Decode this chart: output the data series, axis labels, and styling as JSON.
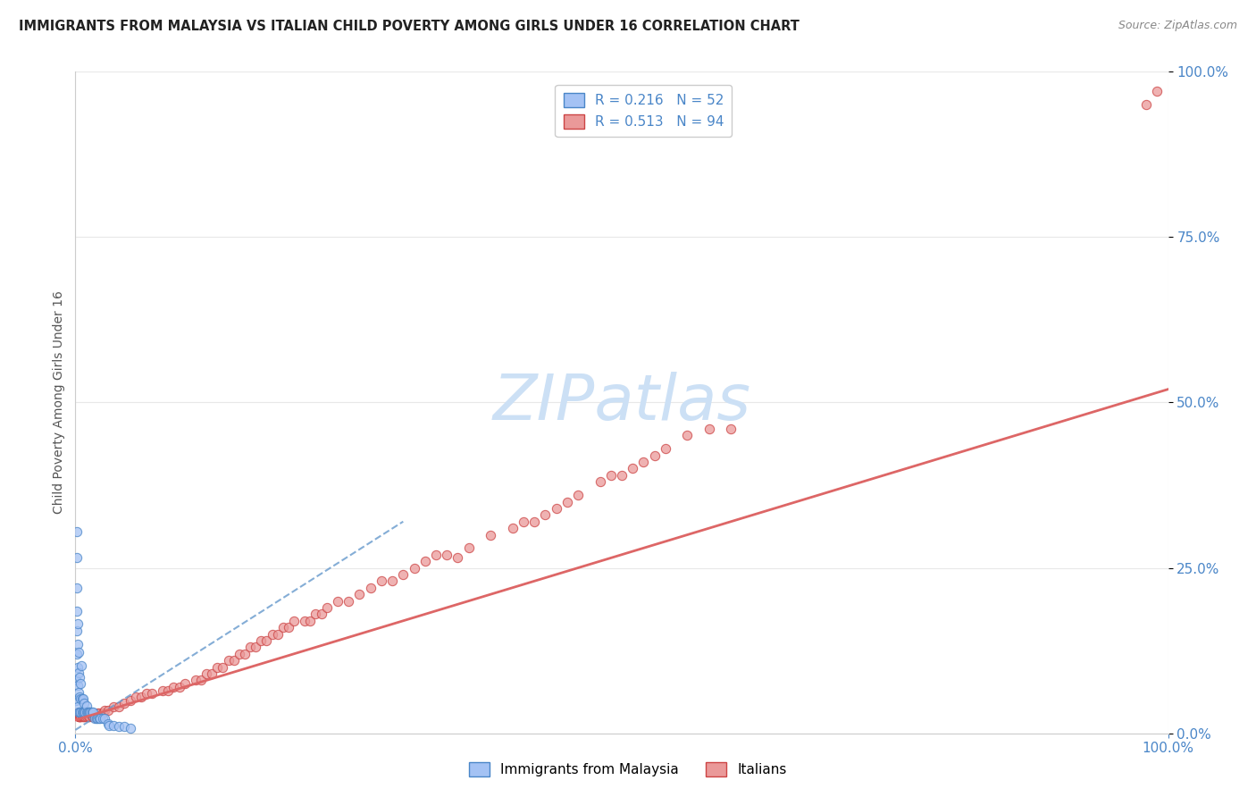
{
  "title": "IMMIGRANTS FROM MALAYSIA VS ITALIAN CHILD POVERTY AMONG GIRLS UNDER 16 CORRELATION CHART",
  "source": "Source: ZipAtlas.com",
  "ylabel": "Child Poverty Among Girls Under 16",
  "xlim": [
    0,
    1
  ],
  "ylim": [
    0,
    1
  ],
  "ytick_positions": [
    0.0,
    0.25,
    0.5,
    0.75,
    1.0
  ],
  "ytick_labels": [
    "0.0%",
    "25.0%",
    "50.0%",
    "75.0%",
    "100.0%"
  ],
  "xtick_positions": [
    0.0,
    1.0
  ],
  "xtick_labels": [
    "0.0%",
    "100.0%"
  ],
  "legend1_R": "0.216",
  "legend1_N": "52",
  "legend2_R": "0.513",
  "legend2_N": "94",
  "blue_fill": "#a4c2f4",
  "blue_edge": "#4a86c8",
  "pink_fill": "#ea9999",
  "pink_edge": "#cc4444",
  "blue_line_color": "#6699cc",
  "pink_line_color": "#dd6666",
  "watermark_color": "#cce0f5",
  "background_color": "#ffffff",
  "grid_color": "#e8e8e8",
  "title_color": "#222222",
  "source_color": "#888888",
  "axis_label_color": "#555555",
  "tick_color": "#4a86c8",
  "blue_points_x": [
    0.0008,
    0.0009,
    0.001,
    0.001,
    0.001,
    0.0012,
    0.0013,
    0.0015,
    0.002,
    0.002,
    0.002,
    0.0022,
    0.0025,
    0.003,
    0.003,
    0.003,
    0.0032,
    0.004,
    0.004,
    0.0042,
    0.005,
    0.005,
    0.005,
    0.0052,
    0.006,
    0.006,
    0.007,
    0.007,
    0.008,
    0.008,
    0.009,
    0.01,
    0.01,
    0.011,
    0.012,
    0.013,
    0.014,
    0.015,
    0.016,
    0.018,
    0.019,
    0.02,
    0.022,
    0.023,
    0.025,
    0.027,
    0.03,
    0.031,
    0.035,
    0.04,
    0.045,
    0.05
  ],
  "blue_points_y": [
    0.05,
    0.08,
    0.12,
    0.155,
    0.185,
    0.22,
    0.265,
    0.305,
    0.04,
    0.072,
    0.1,
    0.135,
    0.165,
    0.032,
    0.062,
    0.092,
    0.122,
    0.032,
    0.055,
    0.085,
    0.032,
    0.052,
    0.075,
    0.102,
    0.032,
    0.052,
    0.032,
    0.052,
    0.032,
    0.045,
    0.032,
    0.032,
    0.042,
    0.032,
    0.032,
    0.032,
    0.032,
    0.032,
    0.032,
    0.022,
    0.022,
    0.022,
    0.022,
    0.022,
    0.022,
    0.022,
    0.015,
    0.012,
    0.012,
    0.01,
    0.01,
    0.008
  ],
  "pink_points_x": [
    0.001,
    0.0015,
    0.002,
    0.003,
    0.003,
    0.004,
    0.004,
    0.005,
    0.005,
    0.006,
    0.007,
    0.008,
    0.009,
    0.01,
    0.012,
    0.013,
    0.015,
    0.016,
    0.018,
    0.02,
    0.022,
    0.025,
    0.027,
    0.03,
    0.035,
    0.04,
    0.045,
    0.05,
    0.055,
    0.06,
    0.065,
    0.07,
    0.08,
    0.085,
    0.09,
    0.095,
    0.1,
    0.11,
    0.115,
    0.12,
    0.125,
    0.13,
    0.135,
    0.14,
    0.145,
    0.15,
    0.155,
    0.16,
    0.165,
    0.17,
    0.175,
    0.18,
    0.185,
    0.19,
    0.195,
    0.2,
    0.21,
    0.215,
    0.22,
    0.225,
    0.23,
    0.24,
    0.25,
    0.26,
    0.27,
    0.28,
    0.29,
    0.3,
    0.31,
    0.32,
    0.33,
    0.34,
    0.35,
    0.36,
    0.38,
    0.4,
    0.41,
    0.42,
    0.43,
    0.44,
    0.45,
    0.46,
    0.48,
    0.49,
    0.5,
    0.51,
    0.52,
    0.53,
    0.54,
    0.56,
    0.58,
    0.6,
    0.98,
    0.99
  ],
  "pink_points_y": [
    0.03,
    0.03,
    0.03,
    0.025,
    0.025,
    0.025,
    0.025,
    0.025,
    0.025,
    0.025,
    0.025,
    0.025,
    0.025,
    0.025,
    0.025,
    0.025,
    0.025,
    0.025,
    0.025,
    0.03,
    0.03,
    0.03,
    0.035,
    0.035,
    0.04,
    0.04,
    0.045,
    0.05,
    0.055,
    0.055,
    0.06,
    0.06,
    0.065,
    0.065,
    0.07,
    0.07,
    0.075,
    0.08,
    0.08,
    0.09,
    0.09,
    0.1,
    0.1,
    0.11,
    0.11,
    0.12,
    0.12,
    0.13,
    0.13,
    0.14,
    0.14,
    0.15,
    0.15,
    0.16,
    0.16,
    0.17,
    0.17,
    0.17,
    0.18,
    0.18,
    0.19,
    0.2,
    0.2,
    0.21,
    0.22,
    0.23,
    0.23,
    0.24,
    0.25,
    0.26,
    0.27,
    0.27,
    0.265,
    0.28,
    0.3,
    0.31,
    0.32,
    0.32,
    0.33,
    0.34,
    0.35,
    0.36,
    0.38,
    0.39,
    0.39,
    0.4,
    0.41,
    0.42,
    0.43,
    0.45,
    0.46,
    0.46,
    0.95,
    0.97
  ],
  "blue_trend_x": [
    0.0,
    0.3
  ],
  "blue_trend_y": [
    0.005,
    0.32
  ],
  "pink_trend_x": [
    0.0,
    1.0
  ],
  "pink_trend_y": [
    0.02,
    0.52
  ]
}
